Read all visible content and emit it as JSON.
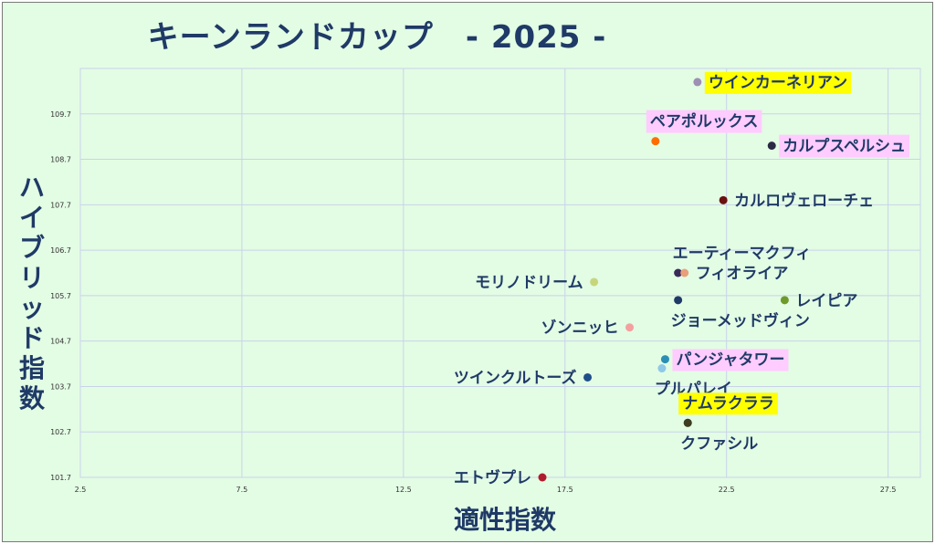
{
  "title": "キーンランドカップ　- 2025 -",
  "chart_data": {
    "type": "scatter",
    "title": "キーンランドカップ　- 2025 -",
    "xlabel": "適性指数",
    "ylabel": "ハイブリッド指数",
    "xlim": [
      2.5,
      28.5
    ],
    "ylim": [
      101.7,
      110.7
    ],
    "xticks": [
      "2.5",
      "7.5",
      "12.5",
      "17.5",
      "22.5",
      "27.5"
    ],
    "yticks": [
      "101.7",
      "102.7",
      "103.7",
      "104.7",
      "105.7",
      "106.7",
      "107.7",
      "108.7",
      "109.7"
    ],
    "grid": true,
    "colors": {
      "highlight_yellow": "#ffff00",
      "highlight_pink": "#ffccff"
    },
    "points": [
      {
        "name": "ウインカーネリアン",
        "x": 21.6,
        "y": 110.4,
        "color": "#9e8fb5",
        "highlight": "yellow",
        "label_side": "right"
      },
      {
        "name": "ペアポルックス",
        "x": 20.3,
        "y": 109.1,
        "color": "#ff6d00",
        "highlight": "pink",
        "label_side": "above"
      },
      {
        "name": "カルプスペルシュ",
        "x": 23.9,
        "y": 109.0,
        "color": "#2a2a44",
        "highlight": "pink",
        "label_side": "right"
      },
      {
        "name": "カルロヴェローチェ",
        "x": 22.4,
        "y": 107.8,
        "color": "#6b1010",
        "highlight": "",
        "label_side": "right"
      },
      {
        "name": "エーティーマクフィ",
        "x": 21.0,
        "y": 106.2,
        "color": "#3a2a5a",
        "highlight": "",
        "label_side": "above"
      },
      {
        "name": "フィオライア",
        "x": 21.2,
        "y": 106.2,
        "color": "#e8a07a",
        "highlight": "",
        "label_side": "right"
      },
      {
        "name": "モリノドリーム",
        "x": 18.4,
        "y": 106.0,
        "color": "#c7d67a",
        "highlight": "",
        "label_side": "left"
      },
      {
        "name": "レイピア",
        "x": 24.3,
        "y": 105.6,
        "color": "#6e9a2a",
        "highlight": "",
        "label_side": "right"
      },
      {
        "name": "ジョーメッドヴィン",
        "x": 21.0,
        "y": 105.6,
        "color": "#1f3a66",
        "highlight": "",
        "label_side": "below"
      },
      {
        "name": "ゾンニッヒ",
        "x": 19.5,
        "y": 105.0,
        "color": "#f4a0a0",
        "highlight": "",
        "label_side": "left"
      },
      {
        "name": "パンジャタワー",
        "x": 20.6,
        "y": 104.3,
        "color": "#2a8fb5",
        "highlight": "pink",
        "label_side": "right"
      },
      {
        "name": "プルパレイ",
        "x": 20.5,
        "y": 104.1,
        "color": "#8ec9e8",
        "highlight": "",
        "label_side": "below"
      },
      {
        "name": "ツインクルトーズ",
        "x": 18.2,
        "y": 103.9,
        "color": "#1f4f8a",
        "highlight": "",
        "label_side": "left"
      },
      {
        "name": "ナムラクララ",
        "x": 21.3,
        "y": 102.9,
        "color": "#556b2f",
        "highlight": "yellow",
        "label_side": "above"
      },
      {
        "name": "クファシル",
        "x": 21.3,
        "y": 102.9,
        "color": "#3d3d1f",
        "highlight": "",
        "label_side": "below"
      },
      {
        "name": "エトヴプレ",
        "x": 16.8,
        "y": 101.7,
        "color": "#b01c2e",
        "highlight": "",
        "label_side": "left"
      }
    ]
  }
}
